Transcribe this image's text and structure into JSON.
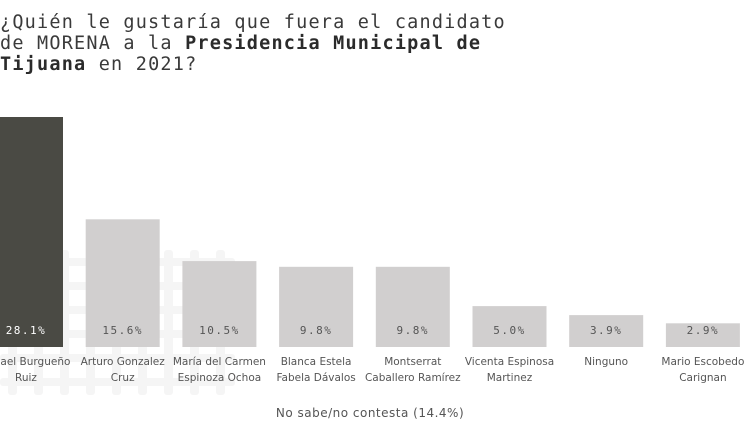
{
  "title_parts": {
    "line1": "¿Quién le gustaría que fuera el candidato",
    "line2_pre": "de MORENA a la ",
    "line2_hl": "Presidencia Municipal de",
    "line3_hl": "Tijuana",
    "line3_post": " en 2021?"
  },
  "colors": {
    "highlight_bar": "#4a4a44",
    "bar": "#d1cfcf",
    "highlight_label": "#ffffff",
    "label": "#555555"
  },
  "chart_data": {
    "type": "bar",
    "title": "¿Quién le gustaría que fuera el candidato de MORENA a la Presidencia Municipal de Tijuana en 2021?",
    "categories": [
      [
        "Ismael Burgueño",
        "Ruiz"
      ],
      [
        "Arturo Gonzalez",
        "Cruz"
      ],
      [
        "María del Carmen",
        "Espinoza Ochoa"
      ],
      [
        "Blanca Estela",
        "Fabela Dávalos"
      ],
      [
        "Montserrat",
        "Caballero Ramírez"
      ],
      [
        "Vicenta Espinosa",
        "Martinez"
      ],
      [
        "Ninguno"
      ],
      [
        "Mario Escobedo",
        "Carignan"
      ]
    ],
    "values": [
      28.1,
      15.6,
      10.5,
      9.8,
      9.8,
      5.0,
      3.9,
      2.9
    ],
    "value_labels": [
      "28.1%",
      "15.6%",
      "10.5%",
      "9.8%",
      "9.8%",
      "5.0%",
      "3.9%",
      "2.9%"
    ],
    "highlight_index": 0,
    "ylim": [
      0,
      28.1
    ],
    "grid": false,
    "legend": "none",
    "note": "No sabe/no contesta (14.4%)"
  }
}
